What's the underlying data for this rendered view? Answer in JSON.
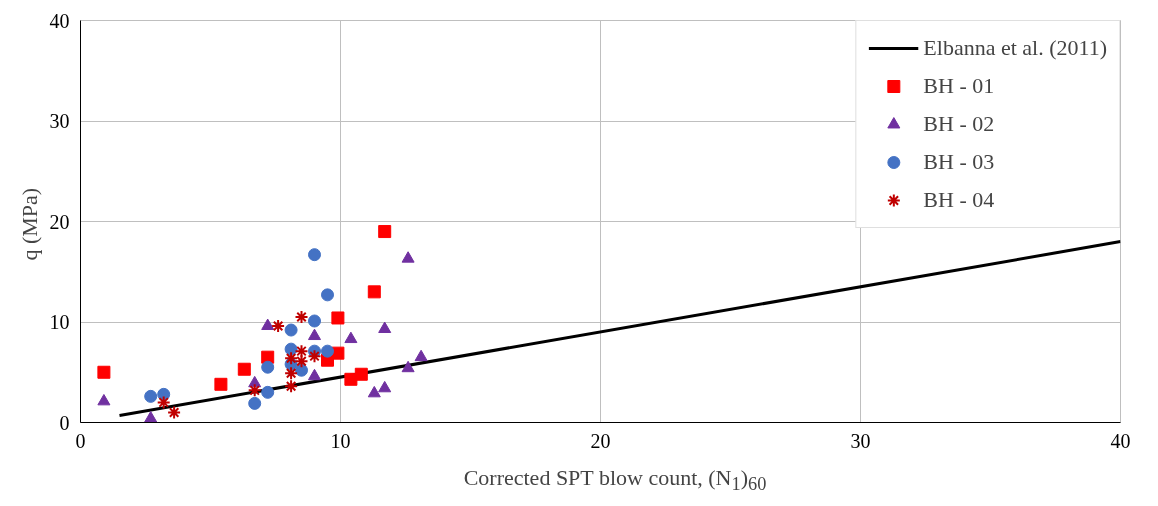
{
  "chart_data": {
    "type": "scatter",
    "xlabel": "Corrected SPT blow count, (N$_{1}$)$_{60}$",
    "ylabel": "q  (MPa)",
    "xlim": [
      0,
      40
    ],
    "ylim": [
      0,
      40
    ],
    "xticks": [
      0,
      10,
      20,
      30,
      40
    ],
    "yticks": [
      0,
      10,
      20,
      30,
      40
    ],
    "grid": true,
    "legend": "top right",
    "series": [
      {
        "name": "Elbanna et al. (2011)",
        "type": "line",
        "color": "#000000",
        "line_style": "solid",
        "x": [
          1.5,
          40
        ],
        "values": [
          0.7,
          18
        ]
      },
      {
        "name": "BH - 01",
        "color": "#ff0000",
        "marker": "square",
        "x": [
          0.9,
          5.4,
          6.3,
          7.2,
          9.9,
          9.9,
          9.5,
          10.4,
          10.8,
          11.3,
          11.7
        ],
        "values": [
          5.0,
          3.8,
          5.3,
          6.5,
          10.4,
          6.9,
          6.2,
          4.3,
          4.8,
          13.0,
          19.0
        ]
      },
      {
        "name": "BH - 02",
        "color": "#7030a0",
        "marker": "triangle",
        "x": [
          0.9,
          2.7,
          6.7,
          7.2,
          9.0,
          9.0,
          10.4,
          11.7,
          11.3,
          11.7,
          12.6,
          13.1,
          12.6
        ],
        "values": [
          2.1,
          0.4,
          3.9,
          9.6,
          8.6,
          4.6,
          8.3,
          9.3,
          2.9,
          3.4,
          5.4,
          6.5,
          16.3
        ]
      },
      {
        "name": "BH - 03",
        "color": "#4472c4",
        "marker": "circle",
        "x": [
          2.7,
          3.2,
          6.7,
          7.2,
          7.2,
          8.1,
          8.1,
          8.1,
          9.0,
          9.5,
          9.0,
          9.5,
          9.0,
          8.5
        ],
        "values": [
          2.6,
          2.8,
          1.9,
          5.5,
          3.0,
          9.2,
          7.3,
          5.8,
          16.7,
          12.7,
          10.1,
          7.1,
          7.1,
          5.2
        ]
      },
      {
        "name": "BH - 04",
        "color": "#c00000",
        "marker": "cross",
        "x": [
          3.2,
          3.6,
          6.7,
          7.6,
          8.5,
          8.1,
          8.1,
          8.1,
          8.5,
          8.5,
          9.0
        ],
        "values": [
          2.0,
          1.0,
          3.2,
          9.6,
          10.5,
          6.4,
          4.9,
          3.6,
          7.1,
          6.1,
          6.6
        ]
      }
    ]
  }
}
